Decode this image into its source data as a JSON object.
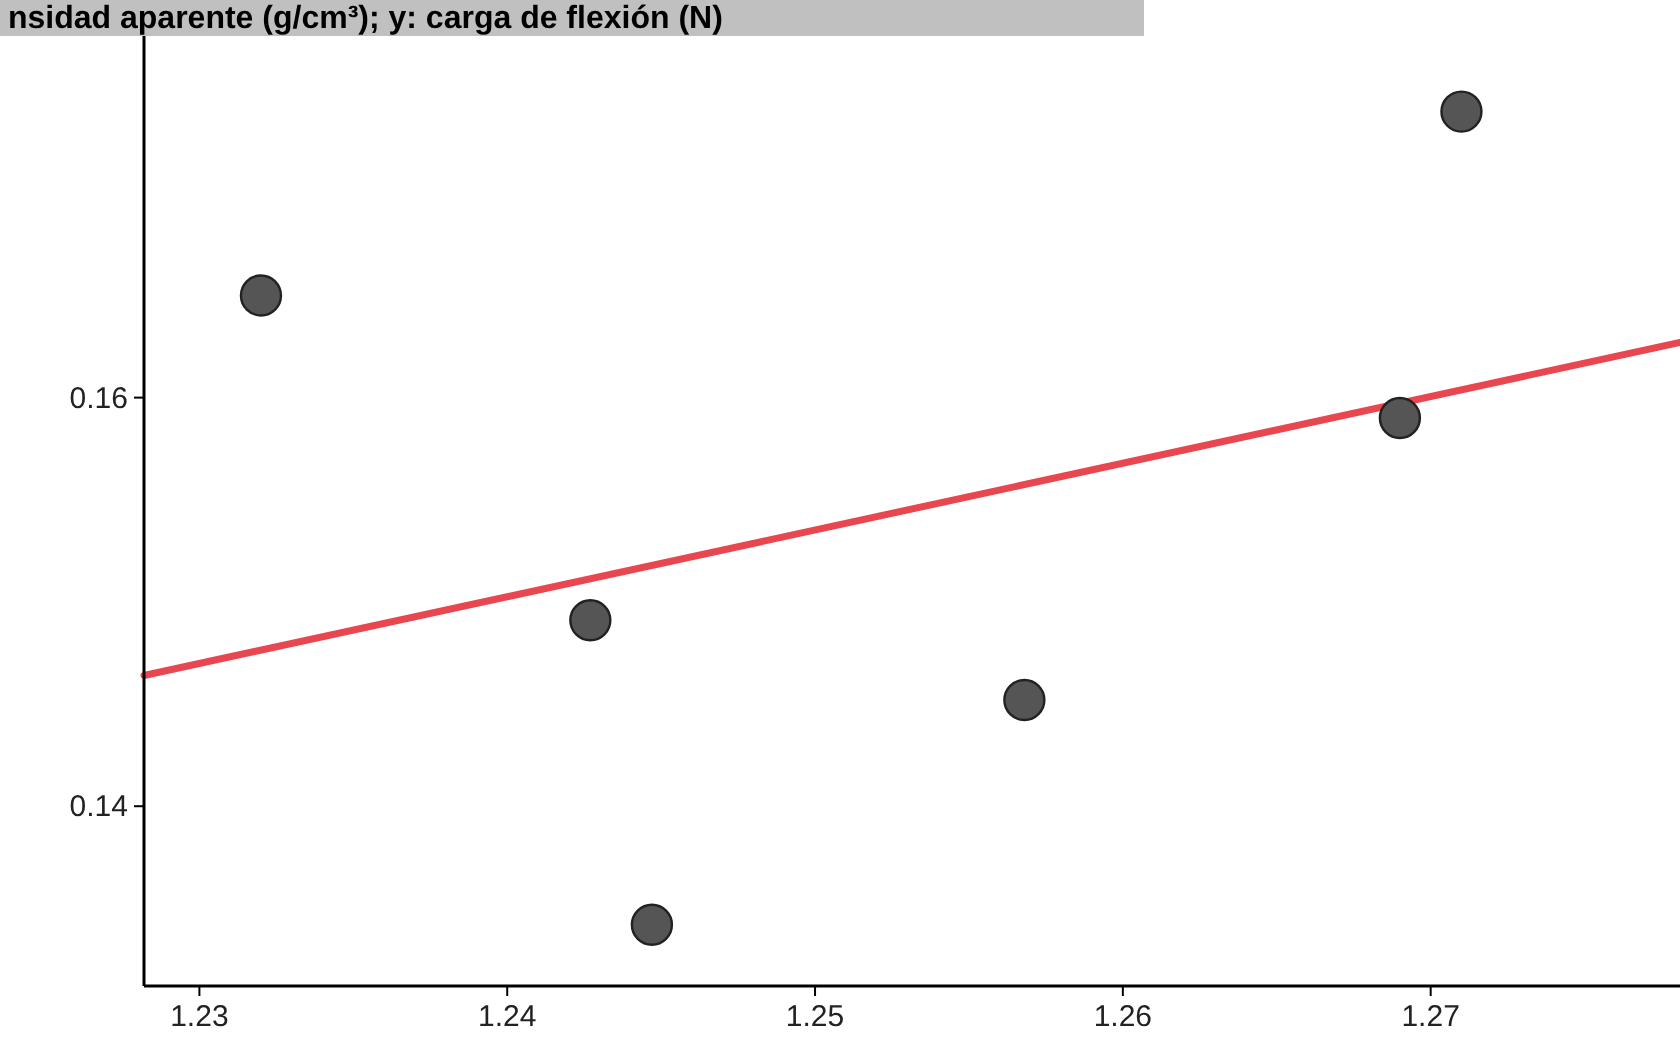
{
  "chart_data": {
    "type": "scatter",
    "title": "nsidad aparente (g/cm³); y: carga de flexión (N)",
    "xlim": [
      1.2282,
      1.2781
    ],
    "xticks": [
      1.23,
      1.24,
      1.25,
      1.26,
      1.27
    ],
    "ylim": [
      0.1312,
      0.1777
    ],
    "yticks": [
      0.14,
      0.16
    ],
    "grid": false,
    "series": [
      {
        "marker": "circle",
        "color": "#555555",
        "x": [
          1.232,
          1.2427,
          1.2447,
          1.2568,
          1.269,
          1.271
        ],
        "values": [
          0.165,
          0.1491,
          0.1342,
          0.1452,
          0.159,
          0.174
        ]
      },
      {
        "type": "line",
        "color": "#e8474f",
        "x": [
          1.2282,
          1.2781
        ],
        "values": [
          0.1464,
          0.1627
        ]
      }
    ]
  }
}
